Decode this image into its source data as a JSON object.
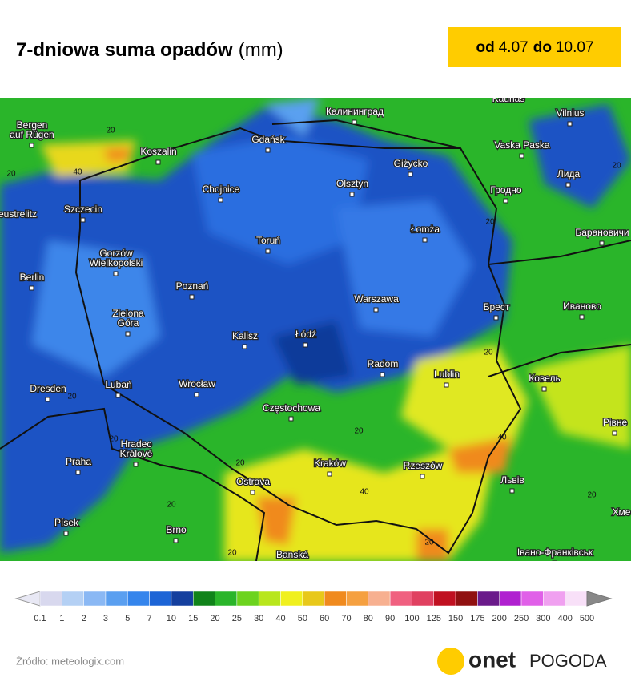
{
  "header": {
    "title": "7-dniowa suma opadów",
    "unit": "(mm)",
    "badge": {
      "from_word": "od",
      "from_date": "4.07",
      "to_word": "do",
      "to_date": "10.07"
    }
  },
  "map": {
    "cities": [
      "Bergen",
      "auf Rügen",
      "Калининград",
      "Kaunas",
      "Vilnius",
      "Gdańsk",
      "Koszalin",
      "Vaska Paska",
      "Giżycko",
      "Лида",
      "Chojnice",
      "Olsztyn",
      "Гродно",
      "Szczecin",
      "eustrelitz",
      "Łomża",
      "Барановичи",
      "Gorzów",
      "Wielkopolski",
      "Toruń",
      "Berlin",
      "Poznań",
      "Warszawa",
      "Брест",
      "Иваново",
      "Zielona",
      "Góra",
      "Kalisz",
      "Łódź",
      "Radom",
      "Lublin",
      "Ковель",
      "Dresden",
      "Lubań",
      "Wrocław",
      "Częstochowa",
      "Рівне",
      "Hradec",
      "Králové",
      "Praha",
      "Kraków",
      "Rzeszów",
      "Ostrava",
      "Львів",
      "Хме",
      "Písek",
      "Brno",
      "Banská",
      "Івано-Франківськ"
    ],
    "contour_labels": [
      20,
      40,
      20,
      20,
      20,
      20,
      20,
      20,
      40,
      20,
      40,
      20,
      20,
      20,
      20,
      20
    ]
  },
  "legend": {
    "ticks": [
      0.1,
      1,
      2,
      3,
      5,
      7,
      10,
      15,
      20,
      25,
      30,
      40,
      50,
      60,
      70,
      80,
      90,
      100,
      125,
      150,
      175,
      200,
      250,
      300,
      400,
      500
    ],
    "colors": [
      "#d8d8ee",
      "#b4d0f4",
      "#8ab8f4",
      "#5a9ff0",
      "#3585ec",
      "#1c64d6",
      "#143f9e",
      "#10831a",
      "#2ab52a",
      "#6cd31e",
      "#b8e61c",
      "#f0f01e",
      "#e8c81a",
      "#f08a1e",
      "#f5a040",
      "#f7b090",
      "#f06080",
      "#e04060",
      "#c01020",
      "#901010",
      "#6a1a8a",
      "#b020d0",
      "#e060e8",
      "#f0a0f0",
      "#f8e0f8"
    ]
  },
  "footer": {
    "source": "Źródło: meteologix.com",
    "logo": "onet",
    "logo_sub": "POGODA"
  }
}
